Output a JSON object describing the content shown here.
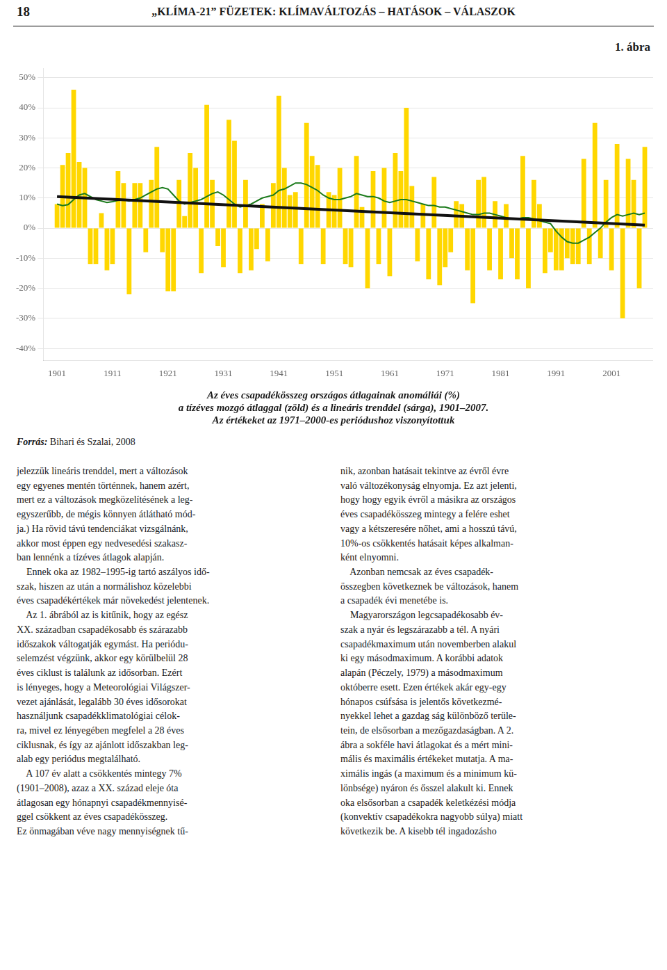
{
  "chart_data": {
    "type": "bar",
    "title": [
      "Az éves csapadékösszeg országos átlagainak anomáliái (%)",
      "a tízéves mozgó átlaggal (zöld) és a lineáris trenddel (sárga), 1901–2007.",
      "Az értékeket az 1971–2000-es periódushoz viszonyítottuk"
    ],
    "annotations": [
      "18",
      "„KLÍMA-21” FÜZETEK: KLÍMAVÁLTOZÁS – HATÁSOK – VÁLASZOK",
      "1. ábra",
      "Forrás:",
      " Bihari és Szalai, 2008",
      "jelezzük lineáris trenddel, mert a változások\negy egyenes mentén történnek, hanem azért,\nmert ez a változások megközelítésének a leg-\negyszerűbb, de mégis könnyen átlátható mód-\nja.) Ha rövid távú tendenciákat vizsgálnánk,\nakkor most éppen egy nedvesedési szakasz-\nban lennénk a tízéves átlagok alapján.\n    Ennek oka az 1982–1995-ig tartó aszályos idő-\nszak, hiszen az után a normálishoz közelebbi\néves csapadékértékek már növekedést jelentenek.\n    Az 1. ábrából az is kitűnik, hogy az egész\nXX. században csapadékosabb és szárazabb\nidőszakok váltogatják egymást. Ha periódu-\nselemzést végzünk, akkor egy körülbelül 28\néves ciklust is találunk az idősorban. Ezért\nis lényeges, hogy a Meteorológiai Világszer-\nvezet ajánlását, legalább 30 éves idősorokat\nhasználjunk csapadékklimatológiai célok-\nra, mivel ez lényegében megfelel a 28 éves\nciklusnak, és így az ajánlott időszakban leg-\nalab egy periódus megtalálható.\n    A 107 év alatt a csökkentés mintegy 7%\n(1901–2008), azaz a XX. század eleje óta\nátlagosan egy hónapnyi csapadékmennyisé-\nggel csökkent az éves csapadékösszeg.\nEz önmagában véve nagy mennyiségnek tű-",
      "nik, azonban hatásait tekintve az évről évre\nvaló változékonyság elnyomja. Ez azt jelenti,\nhogy hogy egyik évről a másikra az országos\néves csapadékösszeg mintegy a felére eshet\nvagy a kétszeresére nőhet, ami a hosszú távú,\n10%-os csökkentés hatásait képes alkalman-\nként elnyomni.\n    Azonban nemcsak az éves csapadék-\nösszegben következnek be változások, hanem\na csapadék évi menetébe is.\n    Magyarországon legcsapadékosabb év-\nszak a nyár és legszárazabb a tél. A nyári\ncsapadékmaximum után novemberben alakul\nki egy másodmaximum. A korábbi adatok\nalapán (Péczely, 1979) a másodmaximum\noktóberre esett. Ezen értékek akár egy-egy\nhónapos csúfsása is jelentős következmé-\nnyekkel lehet a gazdag ság különböző terüle-\ntein, de elsősorban a mezőgazdaságban. A 2.\nábra a sokféle havi átlagokat és a mért mini-\nmális és maximális értékeket mutatja. A ma-\nximális ingás (a maximum és a minimum kü-\nlönbsége) nyáron és ősszel alakult ki. Ennek\noka elsősorban a csapadék keletkézési módja\n(konvektív csapadékokra nagyobb súlya) miatt\nkövetkezik be. A kisebb tél ingadozásho"
    ],
    "x": [
      1901,
      1902,
      1903,
      1904,
      1905,
      1906,
      1907,
      1908,
      1909,
      1910,
      1911,
      1912,
      1913,
      1914,
      1915,
      1916,
      1917,
      1918,
      1919,
      1920,
      1921,
      1922,
      1923,
      1924,
      1925,
      1926,
      1927,
      1928,
      1929,
      1930,
      1931,
      1932,
      1933,
      1934,
      1935,
      1936,
      1937,
      1938,
      1939,
      1940,
      1941,
      1942,
      1943,
      1944,
      1945,
      1946,
      1947,
      1948,
      1949,
      1950,
      1951,
      1952,
      1953,
      1954,
      1955,
      1956,
      1957,
      1958,
      1959,
      1960,
      1961,
      1962,
      1963,
      1964,
      1965,
      1966,
      1967,
      1968,
      1969,
      1970,
      1971,
      1972,
      1973,
      1974,
      1975,
      1976,
      1977,
      1978,
      1979,
      1980,
      1981,
      1982,
      1983,
      1984,
      1985,
      1986,
      1987,
      1988,
      1989,
      1990,
      1991,
      1992,
      1993,
      1994,
      1995,
      1996,
      1997,
      1998,
      1999,
      2000,
      2001,
      2002,
      2003,
      2004,
      2005,
      2006,
      2007
    ],
    "series": [
      {
        "type": "bar",
        "color": "#FFD700",
        "values": [
          8,
          21,
          25,
          46,
          22,
          20,
          -12,
          -12,
          5,
          -14,
          -12,
          19,
          15,
          -22,
          15,
          15,
          -8,
          16,
          27,
          -8,
          -21,
          -21,
          16,
          4,
          25,
          20,
          -15,
          41,
          16,
          -6,
          -13,
          36,
          29,
          -15,
          16,
          -14,
          -7,
          8,
          -11,
          15,
          44,
          20,
          11,
          12,
          -12,
          35,
          24,
          21,
          -12,
          12,
          11,
          20,
          -12,
          -13,
          24,
          7,
          -20,
          19,
          -12,
          20,
          -16,
          25,
          19,
          40,
          14,
          -11,
          8,
          -17,
          17,
          -19,
          -13,
          -8,
          9,
          8,
          -14,
          -25,
          16,
          17,
          -14,
          9,
          -17,
          8,
          -10,
          -17,
          24,
          -20,
          16,
          8,
          -15,
          -8,
          -14,
          -14,
          -10,
          -12,
          -12,
          23,
          -12,
          35,
          -10,
          16,
          -14,
          28,
          -30,
          23,
          16,
          -20,
          27
        ]
      },
      {
        "type": "line",
        "color": "#1a7a1a",
        "values": [
          8.0,
          7.5,
          7.8,
          9.5,
          11.0,
          11.5,
          10.5,
          9.5,
          9.0,
          8.5,
          8.8,
          9.2,
          9.5,
          9.0,
          9.5,
          10.0,
          11.0,
          12.0,
          13.0,
          13.5,
          13.0,
          11.0,
          9.0,
          8.0,
          8.5,
          9.0,
          9.5,
          10.5,
          11.5,
          12.0,
          11.0,
          9.5,
          8.0,
          7.0,
          7.5,
          8.0,
          9.0,
          10.0,
          10.5,
          11.0,
          12.5,
          13.0,
          14.0,
          15.0,
          15.0,
          14.5,
          13.5,
          12.5,
          11.0,
          10.0,
          9.5,
          9.5,
          10.0,
          10.5,
          11.5,
          11.0,
          10.5,
          10.5,
          10.0,
          9.0,
          8.5,
          9.0,
          9.5,
          9.5,
          9.0,
          8.5,
          8.0,
          7.5,
          7.5,
          7.0,
          7.0,
          6.5,
          6.0,
          5.5,
          5.0,
          4.5,
          4.5,
          5.0,
          5.0,
          4.5,
          4.0,
          3.5,
          3.0,
          3.0,
          3.5,
          3.5,
          3.0,
          2.5,
          2.0,
          1.5,
          -1.0,
          -3.0,
          -4.5,
          -5.0,
          -5.0,
          -4.0,
          -3.0,
          -1.5,
          0.0,
          2.0,
          3.5,
          4.5,
          4.0,
          4.5,
          5.0,
          4.5,
          5.0
        ]
      },
      {
        "type": "line",
        "color": "#111111",
        "x": [
          1901,
          2007
        ],
        "values": [
          10.5,
          1.0
        ]
      }
    ],
    "xlim": [
      1898.5,
      2008.5
    ],
    "xticks": [
      1901,
      1911,
      1921,
      1931,
      1941,
      1951,
      1961,
      1971,
      1981,
      1991,
      2001
    ],
    "ylim": [
      -44,
      53
    ],
    "yticks": [
      {
        "value": -40,
        "label": "-40%"
      },
      {
        "value": -30,
        "label": "-30%"
      },
      {
        "value": -20,
        "label": "-20%"
      },
      {
        "value": -10,
        "label": "-10%"
      },
      {
        "value": 0,
        "label": "0%"
      },
      {
        "value": 10,
        "label": "10%"
      },
      {
        "value": 20,
        "label": "20%"
      },
      {
        "value": 30,
        "label": "30%"
      },
      {
        "value": 40,
        "label": "40%"
      },
      {
        "value": 50,
        "label": "50%"
      }
    ],
    "grid": "y"
  }
}
